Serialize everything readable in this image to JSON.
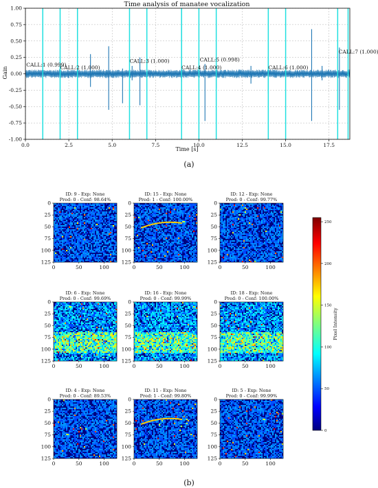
{
  "colors": {
    "waveform": "#1f77b4",
    "call_line": "#20e0e0",
    "grid": "#b0b0b0"
  },
  "chart_data": [
    {
      "type": "line",
      "title": "Time analysis of manatee vocalization",
      "xlabel": "Time [s]",
      "ylabel": "Gain",
      "xlim": [
        0.0,
        18.7
      ],
      "ylim": [
        -1.0,
        1.0
      ],
      "xticks": [
        "0.0",
        "2.5",
        "5.0",
        "7.5",
        "10.0",
        "12.5",
        "15.0",
        "17.5"
      ],
      "yticks": [
        "1.00",
        "0.75",
        "0.50",
        "0.25",
        "0.00",
        "-0.25",
        "-0.50",
        "-0.75",
        "-1.00"
      ],
      "grid": true,
      "vertical_lines_s": [
        1.0,
        2.0,
        3.0,
        6.0,
        7.0,
        9.0,
        10.0,
        11.0,
        14.0,
        15.0,
        18.0,
        18.6
      ],
      "spikes": [
        {
          "x": 2.0,
          "hi": 0.2,
          "lo": -0.28
        },
        {
          "x": 3.75,
          "hi": 0.3,
          "lo": -0.2
        },
        {
          "x": 4.8,
          "hi": 0.42,
          "lo": -0.55
        },
        {
          "x": 5.6,
          "hi": 0.08,
          "lo": -0.45
        },
        {
          "x": 6.15,
          "hi": 0.12,
          "lo": -0.1
        },
        {
          "x": 6.6,
          "hi": 0.25,
          "lo": -0.48
        },
        {
          "x": 9.0,
          "hi": 1.0,
          "lo": -0.12
        },
        {
          "x": 10.35,
          "hi": 0.15,
          "lo": -0.72
        },
        {
          "x": 11.0,
          "hi": 0.08,
          "lo": -0.22
        },
        {
          "x": 13.0,
          "hi": 0.12,
          "lo": -0.15
        },
        {
          "x": 14.0,
          "hi": 0.25,
          "lo": -0.3
        },
        {
          "x": 16.5,
          "hi": 0.68,
          "lo": -0.72
        },
        {
          "x": 17.1,
          "hi": 0.12,
          "lo": -0.1
        },
        {
          "x": 18.1,
          "hi": 0.4,
          "lo": -0.55
        }
      ],
      "annotations": [
        {
          "x": 0.05,
          "y": 0.11,
          "text": "CALL:1 (0.999)"
        },
        {
          "x": 2.0,
          "y": 0.07,
          "text": "CALL:2 (1.000)"
        },
        {
          "x": 6.0,
          "y": 0.17,
          "text": "CALL:3 (1.000)"
        },
        {
          "x": 9.0,
          "y": 0.07,
          "text": "CALL:4 (1.000)"
        },
        {
          "x": 10.05,
          "y": 0.19,
          "text": "CALL:5 (0.998)"
        },
        {
          "x": 14.0,
          "y": 0.07,
          "text": "CALL:6 (1.000)"
        },
        {
          "x": 18.05,
          "y": 0.31,
          "text": "CALL:7 (1.000)"
        }
      ]
    },
    {
      "type": "heatmap",
      "panels": [
        {
          "title1": "ID: 9 - Exp: None",
          "title2": "Pred: 0 - Conf: 98.64%"
        },
        {
          "title1": "ID: 15 - Exp: None",
          "title2": "Pred: 1 - Conf: 100.00%"
        },
        {
          "title1": "ID: 12 - Exp: None",
          "title2": "Pred: 0 - Conf: 99.77%"
        },
        {
          "title1": "ID: 6 - Exp: None",
          "title2": "Pred: 0 - Conf: 99.69%"
        },
        {
          "title1": "ID: 16 - Exp: None",
          "title2": "Pred: 0 - Conf: 99.99%"
        },
        {
          "title1": "ID: 18 - Exp: None",
          "title2": "Pred: 0 - Conf: 100.00%"
        },
        {
          "title1": "ID: 4 - Exp: None",
          "title2": "Pred: 0 - Conf: 89.53%"
        },
        {
          "title1": "ID: 11 - Exp: None",
          "title2": "Pred: 1 - Conf: 99.80%"
        },
        {
          "title1": "ID: 5 - Exp: None",
          "title2": "Pred: 0 - Conf: 99.99%"
        }
      ],
      "xticks": [
        "0",
        "50",
        "100"
      ],
      "yticks": [
        "0",
        "25",
        "50",
        "75",
        "100",
        "125"
      ],
      "colorbar": {
        "label": "Pixel Intensity",
        "range": [
          0,
          255
        ],
        "ticks": [
          "0",
          "50",
          "100",
          "150",
          "200",
          "250"
        ]
      }
    }
  ],
  "captions": {
    "a": "(a)",
    "b": "(b)"
  }
}
